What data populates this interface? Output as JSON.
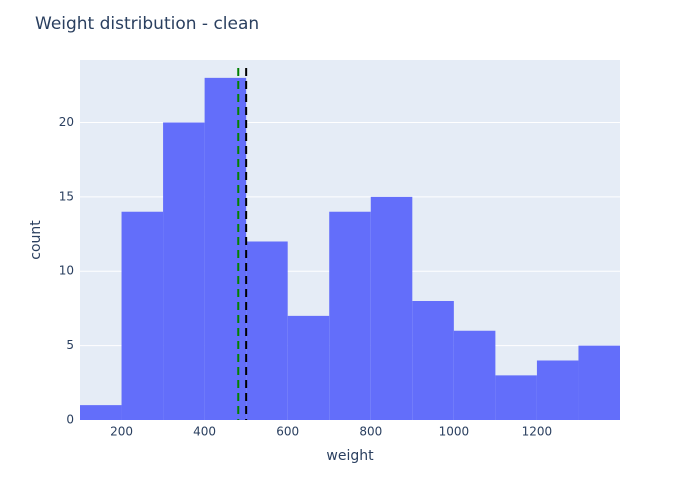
{
  "chart_data": {
    "type": "histogram",
    "title": "Weight distribution - clean",
    "x_label": "weight",
    "y_label": "count",
    "bins": [
      100,
      200,
      300,
      400,
      500,
      600,
      700,
      800,
      900,
      1000,
      1100,
      1200,
      1300,
      1400
    ],
    "counts": [
      1,
      14,
      20,
      23,
      12,
      7,
      14,
      15,
      8,
      6,
      3,
      4,
      5
    ],
    "color": "#636efa",
    "xlim": [
      100,
      1400
    ],
    "xticks": [
      200,
      400,
      600,
      800,
      1000,
      1200
    ],
    "ylim": [
      0,
      24.2
    ],
    "yticks": [
      0,
      5,
      10,
      15,
      20
    ],
    "grid": true,
    "vlines": [
      {
        "value": 481,
        "color": "green"
      },
      {
        "value": 500,
        "color": "black"
      }
    ]
  }
}
